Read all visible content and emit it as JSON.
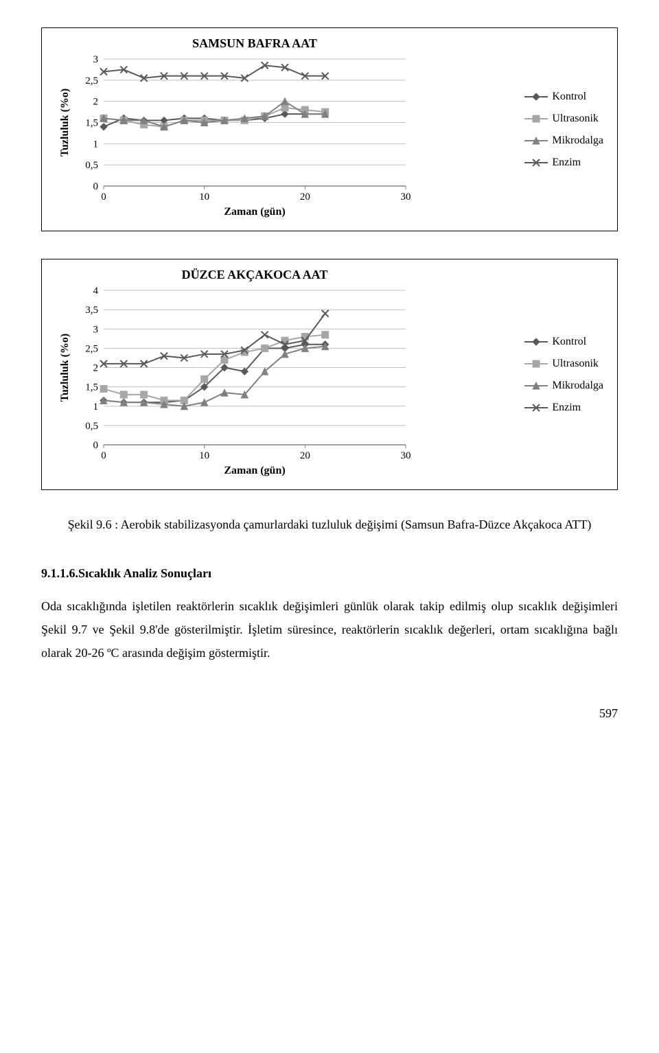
{
  "chart1": {
    "type": "line",
    "title": "SAMSUN BAFRA AAT",
    "title_fontsize": 18,
    "title_weight": "bold",
    "ylabel": "Tuzluluk (%o)",
    "xlabel": "Zaman (gün)",
    "label_fontsize": 16,
    "label_weight": "bold",
    "xlim": [
      0,
      30
    ],
    "ylim": [
      0,
      3
    ],
    "xtick_step": 10,
    "ytick_step": 0.5,
    "ytick_labels": [
      "0",
      "0,5",
      "1",
      "1,5",
      "2",
      "2,5",
      "3"
    ],
    "xtick_labels": [
      "0",
      "10",
      "20",
      "30"
    ],
    "grid_color": "#bfbfbf",
    "background_color": "#ffffff",
    "line_color": "#808080",
    "line_color_dark": "#595959",
    "line_width": 2,
    "marker_size": 5,
    "x": [
      0,
      2,
      4,
      6,
      8,
      10,
      12,
      14,
      16,
      18,
      20,
      22
    ],
    "series": {
      "Kontrol": {
        "marker": "diamond",
        "color": "#595959",
        "y": [
          1.4,
          1.6,
          1.55,
          1.55,
          1.6,
          1.6,
          1.55,
          1.55,
          1.6,
          1.7,
          1.7,
          1.7
        ]
      },
      "Ultrasonik": {
        "marker": "square",
        "color": "#a6a6a6",
        "y": [
          1.6,
          1.55,
          1.45,
          1.4,
          1.55,
          1.55,
          1.55,
          1.55,
          1.65,
          1.85,
          1.8,
          1.75
        ]
      },
      "Mikrodalga": {
        "marker": "triangle",
        "color": "#808080",
        "y": [
          1.6,
          1.55,
          1.55,
          1.4,
          1.55,
          1.5,
          1.55,
          1.6,
          1.65,
          2.0,
          1.7,
          1.7
        ]
      },
      "Enzim": {
        "marker": "x",
        "color": "#595959",
        "y": [
          2.7,
          2.75,
          2.55,
          2.6,
          2.6,
          2.6,
          2.6,
          2.55,
          2.85,
          2.8,
          2.6,
          2.6
        ]
      }
    },
    "legend": [
      "Kontrol",
      "Ultrasonik",
      "Mikrodalga",
      "Enzim"
    ]
  },
  "chart2": {
    "type": "line",
    "title": "DÜZCE AKÇAKOCA AAT",
    "title_fontsize": 18,
    "title_weight": "bold",
    "ylabel": "Tuzluluk (%o)",
    "xlabel": "Zaman (gün)",
    "label_fontsize": 16,
    "label_weight": "bold",
    "xlim": [
      0,
      30
    ],
    "ylim": [
      0,
      4
    ],
    "xtick_step": 10,
    "ytick_step": 0.5,
    "ytick_labels": [
      "0",
      "0,5",
      "1",
      "1,5",
      "2",
      "2,5",
      "3",
      "3,5",
      "4"
    ],
    "xtick_labels": [
      "0",
      "10",
      "20",
      "30"
    ],
    "grid_color": "#bfbfbf",
    "background_color": "#ffffff",
    "line_color": "#808080",
    "line_color_dark": "#595959",
    "line_width": 2,
    "marker_size": 5,
    "x": [
      0,
      2,
      4,
      6,
      8,
      10,
      12,
      14,
      16,
      18,
      20,
      22
    ],
    "series": {
      "Kontrol": {
        "marker": "diamond",
        "color": "#595959",
        "y": [
          1.15,
          1.1,
          1.1,
          1.1,
          1.15,
          1.5,
          2.0,
          1.9,
          2.5,
          2.5,
          2.6,
          2.6
        ]
      },
      "Ultrasonik": {
        "marker": "square",
        "color": "#a6a6a6",
        "y": [
          1.45,
          1.3,
          1.3,
          1.15,
          1.15,
          1.7,
          2.2,
          2.4,
          2.5,
          2.7,
          2.8,
          2.85
        ]
      },
      "Mikrodalga": {
        "marker": "triangle",
        "color": "#808080",
        "y": [
          1.15,
          1.1,
          1.1,
          1.05,
          1.0,
          1.1,
          1.35,
          1.3,
          1.9,
          2.35,
          2.5,
          2.55
        ]
      },
      "Enzim": {
        "marker": "x",
        "color": "#595959",
        "y": [
          2.1,
          2.1,
          2.1,
          2.3,
          2.25,
          2.35,
          2.35,
          2.45,
          2.85,
          2.6,
          2.7,
          3.4
        ]
      }
    },
    "legend": [
      "Kontrol",
      "Ultrasonik",
      "Mikrodalga",
      "Enzim"
    ]
  },
  "caption": "Şekil 9.6 : Aerobik stabilizasyonda çamurlardaki tuzluluk değişimi (Samsun Bafra-Düzce Akçakoca ATT)",
  "section_head": "9.1.1.6.Sıcaklık Analiz Sonuçları",
  "body_text": "Oda sıcaklığında işletilen reaktörlerin sıcaklık değişimleri günlük olarak takip edilmiş olup sıcaklık değişimleri Şekil 9.7 ve Şekil 9.8'de gösterilmiştir. İşletim süresince, reaktörlerin sıcaklık değerleri, ortam sıcaklığına bağlı olarak 20-26 ºC arasında değişim göstermiştir.",
  "page_number": "597"
}
